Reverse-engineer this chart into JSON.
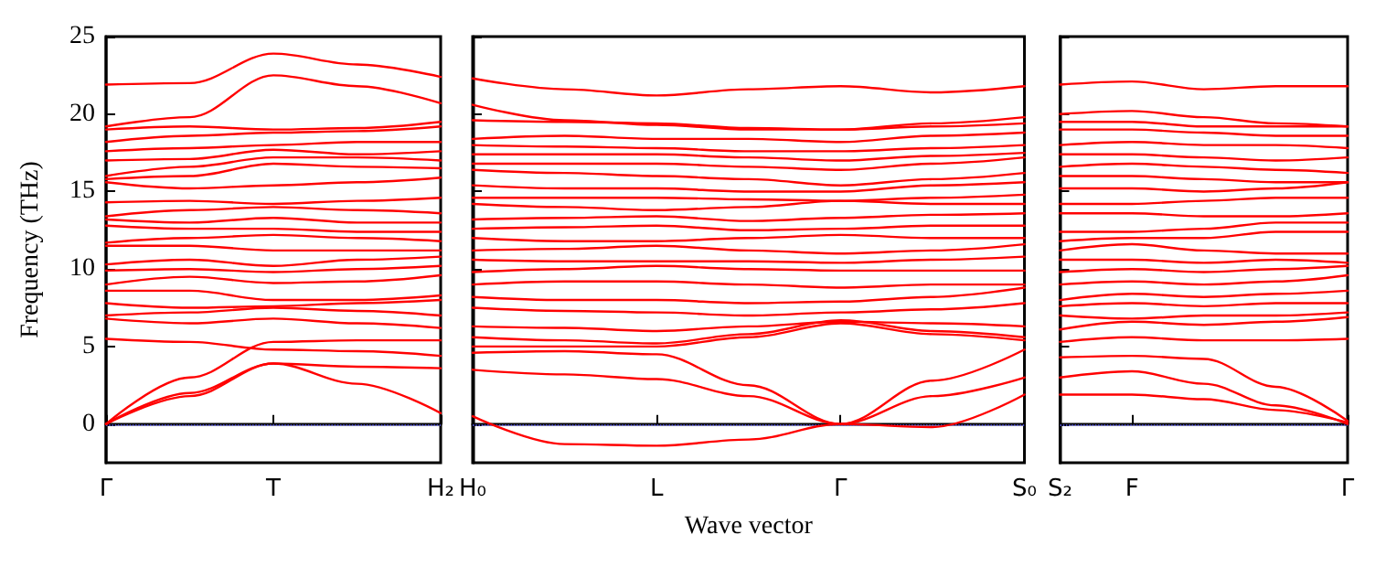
{
  "chart_data": [
    {
      "type": "line",
      "ylabel": "Frequency (THz)",
      "color": "#ff0000",
      "categories": [
        "Γ",
        null,
        "T",
        null,
        "H₂"
      ],
      "ylim": [
        -2.5,
        25
      ],
      "yticks": [
        0,
        5,
        10,
        15,
        20,
        25
      ],
      "grid": false,
      "marker": "none",
      "line_style": "solid",
      "ref_lines": [
        {
          "axis": "y",
          "value": 0,
          "color": "#6666ff",
          "line_style": "dotted"
        }
      ],
      "series": [
        {
          "values": [
            0,
            1.8,
            3.9,
            2.6,
            0.7
          ]
        },
        {
          "values": [
            0,
            2.0,
            3.9,
            3.7,
            3.6
          ]
        },
        {
          "values": [
            0,
            3.0,
            5.3,
            5.4,
            5.4
          ]
        },
        {
          "values": [
            5.5,
            5.3,
            4.8,
            4.7,
            4.4
          ]
        },
        {
          "values": [
            6.8,
            6.5,
            6.8,
            6.5,
            6.2
          ]
        },
        {
          "values": [
            7.0,
            7.2,
            7.5,
            7.3,
            7.0
          ]
        },
        {
          "values": [
            7.8,
            7.5,
            7.6,
            7.8,
            8.0
          ]
        },
        {
          "values": [
            8.6,
            8.6,
            8.0,
            8.0,
            8.3
          ]
        },
        {
          "values": [
            9.0,
            9.5,
            9.1,
            9.2,
            9.6
          ]
        },
        {
          "values": [
            9.9,
            10.0,
            9.8,
            10.0,
            10.2
          ]
        },
        {
          "values": [
            10.3,
            10.6,
            10.2,
            10.6,
            10.8
          ]
        },
        {
          "values": [
            11.5,
            11.5,
            11.2,
            11.2,
            11.2
          ]
        },
        {
          "values": [
            11.7,
            12.0,
            12.2,
            12.0,
            11.8
          ]
        },
        {
          "values": [
            12.8,
            12.6,
            12.6,
            12.4,
            12.4
          ]
        },
        {
          "values": [
            13.2,
            13.0,
            13.3,
            13.0,
            13.0
          ]
        },
        {
          "values": [
            13.4,
            13.8,
            14.0,
            13.8,
            13.6
          ]
        },
        {
          "values": [
            14.3,
            14.4,
            14.2,
            14.4,
            14.6
          ]
        },
        {
          "values": [
            15.6,
            15.2,
            15.4,
            15.6,
            15.9
          ]
        },
        {
          "values": [
            15.8,
            16.0,
            16.8,
            16.6,
            16.5
          ]
        },
        {
          "values": [
            16.0,
            16.6,
            17.2,
            17.2,
            17.0
          ]
        },
        {
          "values": [
            17.0,
            17.1,
            17.7,
            17.4,
            17.6
          ]
        },
        {
          "values": [
            17.6,
            17.8,
            18.0,
            18.2,
            18.2
          ]
        },
        {
          "values": [
            18.2,
            18.6,
            18.8,
            18.9,
            19.2
          ]
        },
        {
          "values": [
            19.0,
            19.2,
            19.0,
            19.1,
            19.5
          ]
        },
        {
          "values": [
            19.2,
            19.8,
            22.5,
            21.8,
            20.7
          ]
        },
        {
          "values": [
            21.9,
            22.0,
            23.9,
            23.2,
            22.4
          ]
        }
      ]
    },
    {
      "type": "line",
      "xlabel": "Wave vector",
      "color": "#ff0000",
      "categories": [
        "H₀",
        null,
        "L",
        null,
        "Γ",
        null,
        "S₀"
      ],
      "ylim": [
        -2.5,
        25
      ],
      "yticks": [
        0,
        5,
        10,
        15,
        20,
        25
      ],
      "tick_labels": "x",
      "grid": false,
      "marker": "none",
      "line_style": "solid",
      "ref_lines": [
        {
          "axis": "y",
          "value": 0,
          "color": "#6666ff",
          "line_style": "dotted"
        }
      ],
      "series": [
        {
          "values": [
            0.5,
            -1.3,
            -1.4,
            -1.0,
            0,
            -0.2,
            1.9
          ]
        },
        {
          "values": [
            3.5,
            3.2,
            2.9,
            1.8,
            0,
            1.8,
            3.0
          ]
        },
        {
          "values": [
            4.6,
            4.7,
            4.5,
            2.5,
            0,
            2.8,
            4.8
          ]
        },
        {
          "values": [
            5.0,
            5.0,
            5.0,
            5.6,
            6.5,
            5.8,
            5.4
          ]
        },
        {
          "values": [
            5.6,
            5.4,
            5.2,
            5.8,
            6.7,
            6.0,
            5.6
          ]
        },
        {
          "values": [
            6.3,
            6.2,
            6.0,
            6.3,
            6.6,
            6.5,
            6.3
          ]
        },
        {
          "values": [
            7.5,
            7.3,
            7.2,
            7.0,
            7.2,
            7.4,
            7.8
          ]
        },
        {
          "values": [
            8.2,
            8.0,
            8.0,
            7.8,
            7.9,
            8.2,
            8.8
          ]
        },
        {
          "values": [
            9.0,
            9.2,
            9.2,
            9.0,
            8.8,
            9.0,
            9.0
          ]
        },
        {
          "values": [
            9.8,
            10.0,
            10.2,
            10.0,
            9.9,
            9.9,
            9.9
          ]
        },
        {
          "values": [
            10.6,
            10.5,
            10.5,
            10.5,
            10.4,
            10.6,
            10.8
          ]
        },
        {
          "values": [
            11.2,
            11.3,
            11.5,
            11.2,
            11.0,
            11.2,
            11.6
          ]
        },
        {
          "values": [
            12.0,
            11.8,
            11.8,
            12.0,
            12.2,
            12.0,
            12.0
          ]
        },
        {
          "values": [
            12.6,
            12.7,
            12.8,
            12.5,
            12.6,
            12.8,
            12.8
          ]
        },
        {
          "values": [
            13.2,
            13.3,
            13.4,
            13.1,
            13.3,
            13.5,
            13.6
          ]
        },
        {
          "values": [
            14.2,
            14.0,
            13.8,
            14.0,
            14.4,
            14.2,
            14.2
          ]
        },
        {
          "values": [
            14.6,
            14.6,
            14.6,
            14.5,
            14.4,
            14.6,
            14.8
          ]
        },
        {
          "values": [
            15.4,
            15.2,
            15.2,
            15.0,
            15.0,
            15.4,
            15.6
          ]
        },
        {
          "values": [
            16.4,
            16.2,
            16.0,
            15.8,
            15.4,
            15.8,
            16.2
          ]
        },
        {
          "values": [
            16.8,
            16.8,
            16.8,
            16.6,
            16.4,
            16.8,
            17.2
          ]
        },
        {
          "values": [
            17.4,
            17.4,
            17.4,
            17.2,
            17.0,
            17.3,
            17.5
          ]
        },
        {
          "values": [
            18.0,
            17.9,
            17.8,
            17.6,
            17.6,
            17.8,
            18.0
          ]
        },
        {
          "values": [
            18.4,
            18.6,
            18.4,
            18.4,
            18.2,
            18.6,
            18.8
          ]
        },
        {
          "values": [
            19.6,
            19.5,
            19.4,
            19.1,
            19.0,
            19.4,
            19.8
          ]
        },
        {
          "values": [
            20.6,
            19.6,
            19.3,
            19.0,
            19.0,
            19.2,
            19.4
          ]
        },
        {
          "values": [
            22.3,
            21.6,
            21.2,
            21.6,
            21.8,
            21.4,
            21.8
          ]
        }
      ]
    },
    {
      "type": "line",
      "color": "#ff0000",
      "categories": [
        "S₂",
        "F",
        null,
        null,
        "Γ"
      ],
      "ylim": [
        -2.5,
        25
      ],
      "yticks": [
        0,
        5,
        10,
        15,
        20,
        25
      ],
      "tick_labels": "x",
      "grid": false,
      "marker": "none",
      "line_style": "solid",
      "ref_lines": [
        {
          "axis": "y",
          "value": 0,
          "color": "#6666ff",
          "line_style": "dotted"
        }
      ],
      "series": [
        {
          "values": [
            1.9,
            1.9,
            1.6,
            0.9,
            0.1
          ]
        },
        {
          "values": [
            3.0,
            3.4,
            2.6,
            1.2,
            0
          ]
        },
        {
          "values": [
            4.3,
            4.4,
            4.2,
            2.4,
            0.2
          ]
        },
        {
          "values": [
            5.3,
            5.6,
            5.4,
            5.4,
            5.5
          ]
        },
        {
          "values": [
            6.1,
            6.6,
            6.4,
            6.6,
            6.9
          ]
        },
        {
          "values": [
            7.0,
            6.8,
            7.0,
            7.0,
            7.2
          ]
        },
        {
          "values": [
            7.6,
            7.8,
            7.6,
            7.8,
            7.8
          ]
        },
        {
          "values": [
            8.0,
            8.4,
            8.2,
            8.4,
            8.6
          ]
        },
        {
          "values": [
            9.0,
            9.2,
            9.0,
            9.2,
            9.6
          ]
        },
        {
          "values": [
            9.8,
            10.0,
            9.8,
            10.0,
            10.2
          ]
        },
        {
          "values": [
            10.6,
            10.6,
            10.4,
            10.6,
            10.4
          ]
        },
        {
          "values": [
            11.2,
            11.6,
            11.2,
            11.0,
            11.0
          ]
        },
        {
          "values": [
            11.8,
            12.0,
            12.0,
            12.4,
            12.4
          ]
        },
        {
          "values": [
            12.4,
            12.4,
            12.6,
            13.0,
            13.0
          ]
        },
        {
          "values": [
            13.6,
            13.6,
            13.4,
            13.4,
            13.6
          ]
        },
        {
          "values": [
            14.2,
            14.2,
            14.4,
            14.6,
            14.6
          ]
        },
        {
          "values": [
            15.2,
            15.2,
            15.0,
            15.2,
            15.6
          ]
        },
        {
          "values": [
            16.0,
            16.0,
            15.8,
            15.6,
            15.6
          ]
        },
        {
          "values": [
            16.6,
            16.8,
            16.6,
            16.4,
            16.2
          ]
        },
        {
          "values": [
            17.4,
            17.4,
            17.2,
            17.0,
            17.2
          ]
        },
        {
          "values": [
            18.0,
            18.2,
            18.0,
            18.0,
            17.8
          ]
        },
        {
          "values": [
            19.0,
            19.0,
            18.8,
            18.6,
            18.6
          ]
        },
        {
          "values": [
            19.5,
            19.5,
            19.2,
            19.2,
            19.2
          ]
        },
        {
          "values": [
            20.0,
            20.2,
            19.8,
            19.4,
            19.2
          ]
        },
        {
          "values": [
            21.9,
            22.1,
            21.6,
            21.8,
            21.8
          ]
        }
      ]
    }
  ]
}
